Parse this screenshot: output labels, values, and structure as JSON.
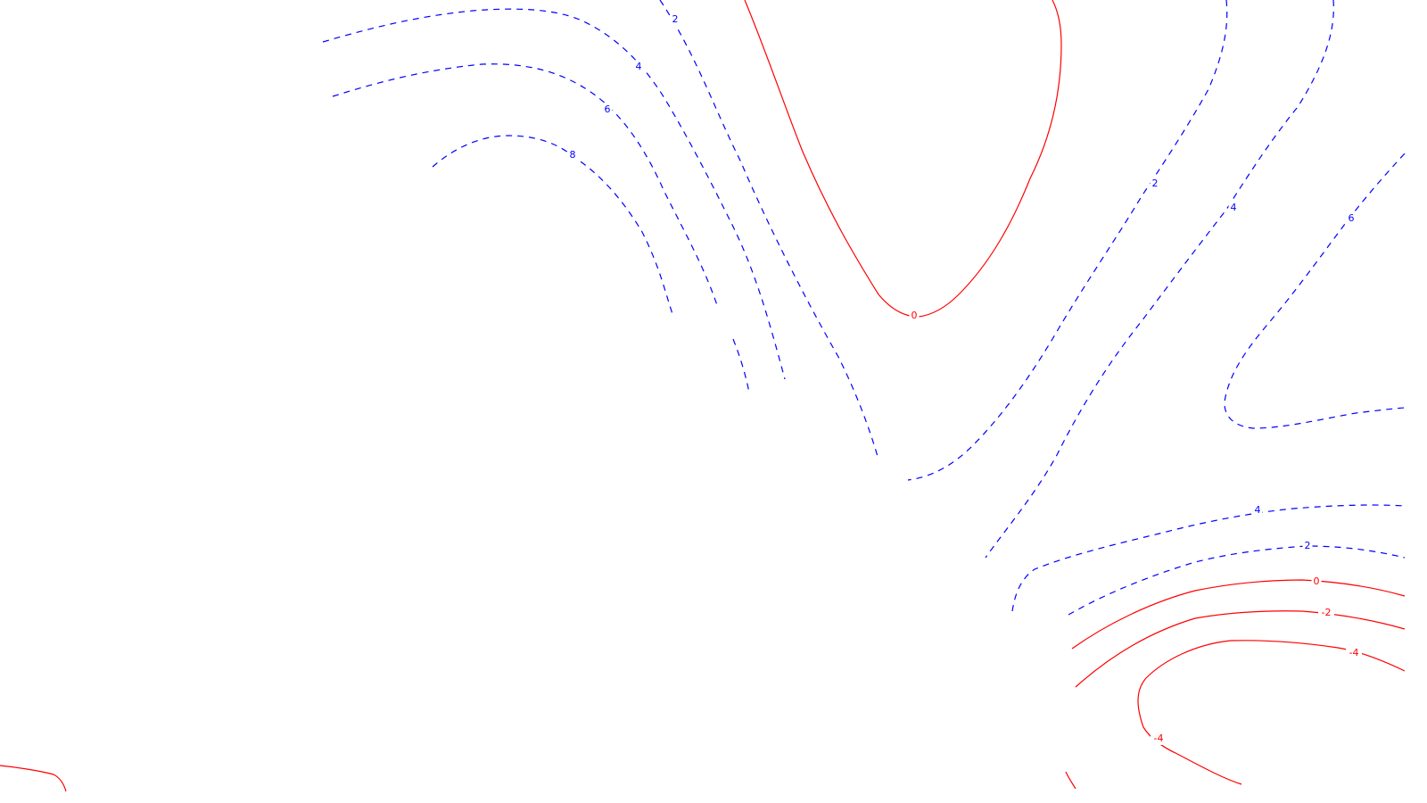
{
  "map": {
    "style": {
      "positive_color": "#0000ff",
      "negative_color": "#ff0000",
      "background": "#ffffff"
    },
    "contours": [
      {
        "id": "pos-2-west",
        "level": 2,
        "labels": [
          "2"
        ]
      },
      {
        "id": "pos-4-west",
        "level": 4,
        "labels": [
          "4"
        ]
      },
      {
        "id": "pos-6-west",
        "level": 6,
        "labels": [
          "6"
        ]
      },
      {
        "id": "pos-8-west",
        "level": 8,
        "labels": [
          "8"
        ]
      },
      {
        "id": "zero-north",
        "level": 0,
        "labels": [
          "0"
        ]
      },
      {
        "id": "pos-2-east",
        "level": 2,
        "labels": [
          "2"
        ]
      },
      {
        "id": "pos-4-east",
        "level": 4,
        "labels": [
          "4"
        ]
      },
      {
        "id": "pos-6-east",
        "level": 6,
        "labels": [
          "6"
        ]
      },
      {
        "id": "pos-4-southeast",
        "level": 4,
        "labels": [
          "4"
        ]
      },
      {
        "id": "pos-2-southeast",
        "level": 2,
        "labels": [
          "2"
        ]
      },
      {
        "id": "zero-southeast",
        "level": 0,
        "labels": [
          "0"
        ]
      },
      {
        "id": "neg-2-southeast",
        "level": -2,
        "labels": [
          "-2"
        ]
      },
      {
        "id": "neg-4-southeast",
        "level": -4,
        "labels": [
          "-4",
          "-4"
        ]
      },
      {
        "id": "neg-southwest",
        "level": -2,
        "labels": []
      },
      {
        "id": "neg-bottom",
        "level": -4,
        "labels": []
      }
    ]
  }
}
